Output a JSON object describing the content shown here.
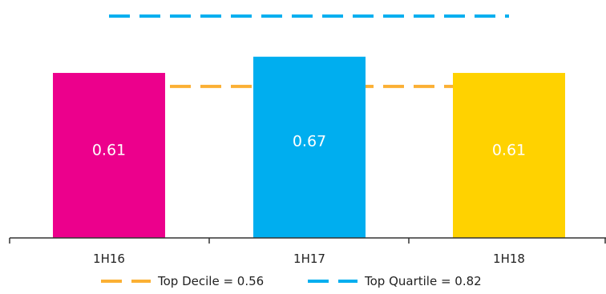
{
  "chart_data": {
    "type": "bar",
    "categories": [
      "1H16",
      "1H17",
      "1H18"
    ],
    "values": [
      0.61,
      0.67,
      0.61
    ],
    "data_labels": [
      "0.61",
      "0.67",
      "0.61"
    ],
    "bar_colors": [
      "#EC008C",
      "#00AEEF",
      "#FFD200"
    ],
    "label_color": "#ffffff",
    "ylim": [
      0,
      0.85
    ],
    "grid": false,
    "reference_lines": [
      {
        "name": "Top Decile",
        "value": 0.56,
        "color": "#FBB034",
        "style": "dashed"
      },
      {
        "name": "Top Quartile",
        "value": 0.82,
        "color": "#00AEEF",
        "style": "dashed"
      }
    ],
    "legend": {
      "position": "bottom",
      "entries": [
        {
          "label": "Top Decile = 0.56",
          "color": "#FBB034"
        },
        {
          "label": "Top Quartile = 0.82",
          "color": "#00AEEF"
        }
      ]
    }
  }
}
